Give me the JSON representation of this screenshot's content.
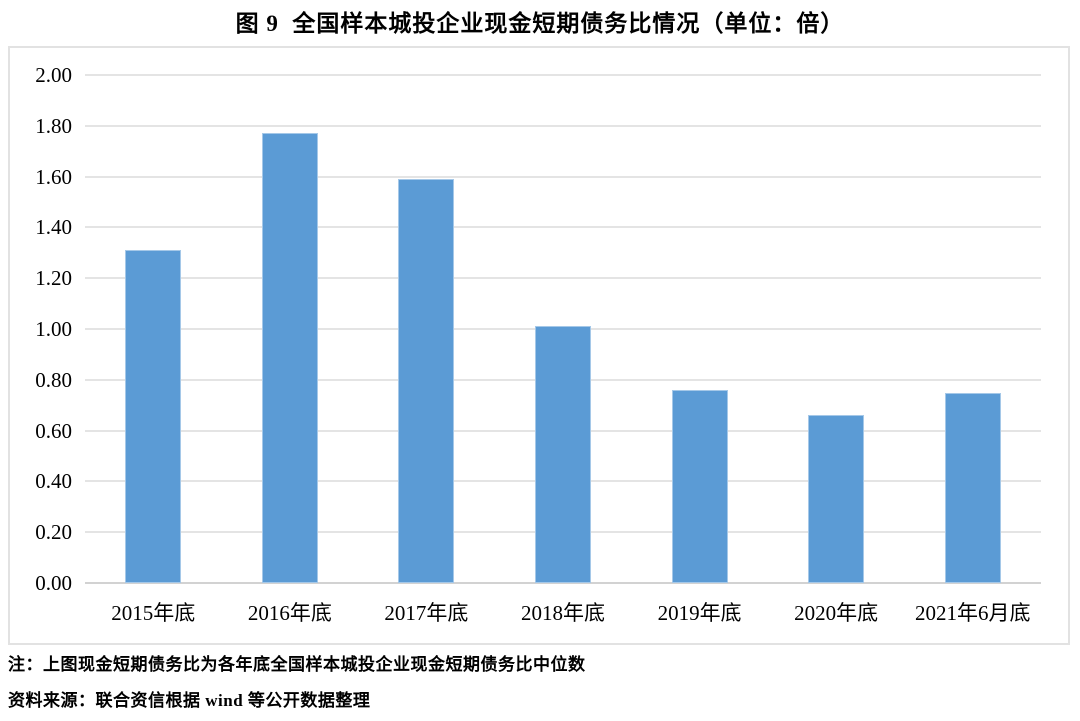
{
  "title": "图 9  全国样本城投企业现金短期债务比情况（单位：倍）",
  "chart_data": {
    "type": "bar",
    "title": "图 9  全国样本城投企业现金短期债务比情况（单位：倍）",
    "categories": [
      "2015年底",
      "2016年底",
      "2017年底",
      "2018年底",
      "2019年底",
      "2020年底",
      "2021年6月底"
    ],
    "values": [
      1.31,
      1.77,
      1.59,
      1.01,
      0.76,
      0.66,
      0.75
    ],
    "unit": "倍",
    "xlabel": "",
    "ylabel": "",
    "ylim": [
      0,
      2.0
    ],
    "ytick_step": 0.2,
    "ytick_labels": [
      "0.00",
      "0.20",
      "0.40",
      "0.60",
      "0.80",
      "1.00",
      "1.20",
      "1.40",
      "1.60",
      "1.80",
      "2.00"
    ],
    "grid": true,
    "legend_position": "none",
    "bar_color": "#5b9bd5"
  },
  "notes": {
    "note_line": "注：上图现金短期债务比为各年底全国样本城投企业现金短期债务比中位数",
    "source_line": "资料来源：联合资信根据 wind 等公开数据整理"
  },
  "colors": {
    "bar": "#5b9bd5",
    "gridline": "#e4e4e4",
    "axis_line": "#d2d2d2",
    "frame_border": "#e2e2e2",
    "text": "#000000",
    "background": "#ffffff"
  }
}
